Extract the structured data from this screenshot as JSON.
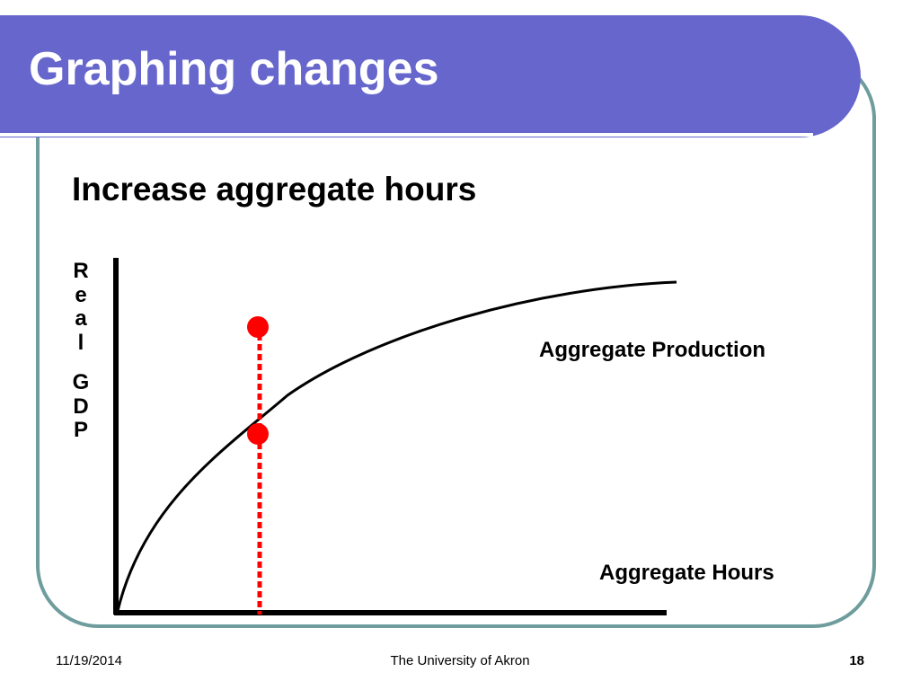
{
  "slide": {
    "title": "Graphing changes",
    "subtitle": "Increase aggregate hours"
  },
  "diagram": {
    "y_axis_label": [
      "R",
      "e",
      "a",
      "l",
      "G",
      "D",
      "P"
    ],
    "curve_label": "Aggregate Production",
    "x_axis_label": "Aggregate Hours",
    "marker_color": "#ff0000",
    "curve_color": "#000000"
  },
  "footer": {
    "date": "11/19/2014",
    "center": "The University of Akron",
    "page": "18"
  },
  "colors": {
    "title_bar": "#6666cc",
    "frame_border": "#6f9c9c"
  }
}
